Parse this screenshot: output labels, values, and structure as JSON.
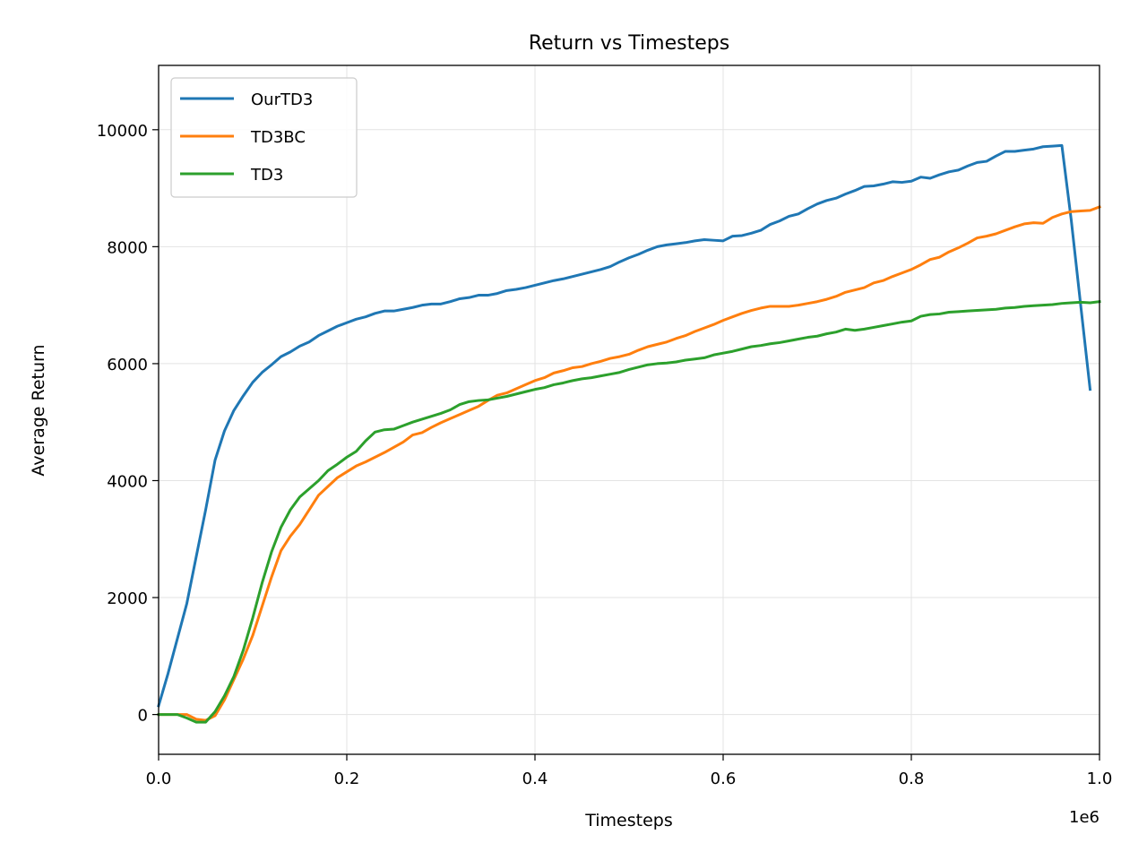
{
  "chart_data": {
    "type": "line",
    "title": "Return vs Timesteps",
    "xlabel": "Timesteps",
    "ylabel": "Average Return",
    "x_offset_label": "1e6",
    "xlim": [
      0.0,
      1.0
    ],
    "ylim": [
      -680,
      11100
    ],
    "xticks": [
      0.0,
      0.2,
      0.4,
      0.6,
      0.8,
      1.0
    ],
    "xtick_labels": [
      "0.0",
      "0.2",
      "0.4",
      "0.6",
      "0.8",
      "1.0"
    ],
    "yticks": [
      0,
      2000,
      4000,
      6000,
      8000,
      10000
    ],
    "ytick_labels": [
      "0",
      "2000",
      "4000",
      "6000",
      "8000",
      "10000"
    ],
    "grid": true,
    "legend_position": "top-left",
    "series": [
      {
        "name": "OurTD3",
        "color": "#1f77b4",
        "x": [
          0.0,
          0.01,
          0.02,
          0.03,
          0.04,
          0.05,
          0.06,
          0.07,
          0.08,
          0.09,
          0.1,
          0.11,
          0.12,
          0.13,
          0.14,
          0.15,
          0.16,
          0.17,
          0.18,
          0.19,
          0.2,
          0.21,
          0.22,
          0.23,
          0.24,
          0.25,
          0.26,
          0.27,
          0.28,
          0.29,
          0.3,
          0.31,
          0.32,
          0.33,
          0.34,
          0.35,
          0.36,
          0.37,
          0.38,
          0.39,
          0.4,
          0.41,
          0.42,
          0.43,
          0.44,
          0.45,
          0.46,
          0.47,
          0.48,
          0.49,
          0.5,
          0.51,
          0.52,
          0.53,
          0.54,
          0.55,
          0.56,
          0.57,
          0.58,
          0.59,
          0.6,
          0.61,
          0.62,
          0.63,
          0.64,
          0.65,
          0.66,
          0.67,
          0.68,
          0.69,
          0.7,
          0.71,
          0.72,
          0.73,
          0.74,
          0.75,
          0.76,
          0.77,
          0.78,
          0.79,
          0.8,
          0.81,
          0.82,
          0.83,
          0.84,
          0.85,
          0.86,
          0.87,
          0.88,
          0.89,
          0.9,
          0.91,
          0.92,
          0.93,
          0.94,
          0.95,
          0.96,
          0.97,
          0.98,
          0.99
        ],
        "values": [
          150,
          700,
          1300,
          1900,
          2700,
          3500,
          4350,
          4850,
          5200,
          5450,
          5680,
          5850,
          5980,
          6120,
          6200,
          6300,
          6370,
          6480,
          6560,
          6640,
          6700,
          6760,
          6800,
          6860,
          6900,
          6900,
          6930,
          6960,
          7000,
          7020,
          7020,
          7060,
          7110,
          7130,
          7170,
          7170,
          7200,
          7250,
          7270,
          7300,
          7340,
          7380,
          7420,
          7450,
          7490,
          7530,
          7570,
          7610,
          7660,
          7740,
          7810,
          7870,
          7940,
          8000,
          8030,
          8050,
          8070,
          8100,
          8120,
          8110,
          8100,
          8180,
          8190,
          8230,
          8280,
          8380,
          8440,
          8520,
          8560,
          8650,
          8730,
          8790,
          8830,
          8900,
          8960,
          9030,
          9040,
          9070,
          9110,
          9100,
          9120,
          9190,
          9170,
          9230,
          9280,
          9310,
          9380,
          9440,
          9460,
          9550,
          9630,
          9630,
          9650,
          9670,
          9710,
          9720,
          9730,
          8450,
          7000,
          5560
        ]
      },
      {
        "name": "TD3BC",
        "color": "#ff7f0e",
        "x": [
          0.0,
          0.01,
          0.02,
          0.03,
          0.04,
          0.05,
          0.06,
          0.07,
          0.08,
          0.09,
          0.1,
          0.11,
          0.12,
          0.13,
          0.14,
          0.15,
          0.16,
          0.17,
          0.18,
          0.19,
          0.2,
          0.21,
          0.22,
          0.23,
          0.24,
          0.25,
          0.26,
          0.27,
          0.28,
          0.29,
          0.3,
          0.31,
          0.32,
          0.33,
          0.34,
          0.35,
          0.36,
          0.37,
          0.38,
          0.39,
          0.4,
          0.41,
          0.42,
          0.43,
          0.44,
          0.45,
          0.46,
          0.47,
          0.48,
          0.49,
          0.5,
          0.51,
          0.52,
          0.53,
          0.54,
          0.55,
          0.56,
          0.57,
          0.58,
          0.59,
          0.6,
          0.61,
          0.62,
          0.63,
          0.64,
          0.65,
          0.66,
          0.67,
          0.68,
          0.69,
          0.7,
          0.71,
          0.72,
          0.73,
          0.74,
          0.75,
          0.76,
          0.77,
          0.78,
          0.79,
          0.8,
          0.81,
          0.82,
          0.83,
          0.84,
          0.85,
          0.86,
          0.87,
          0.88,
          0.89,
          0.9,
          0.91,
          0.92,
          0.93,
          0.94,
          0.95,
          0.96,
          0.97,
          0.98,
          0.99,
          1.0
        ],
        "values": [
          0,
          0,
          0,
          0,
          -80,
          -100,
          -20,
          250,
          600,
          950,
          1350,
          1850,
          2350,
          2800,
          3050,
          3250,
          3500,
          3750,
          3900,
          4050,
          4150,
          4250,
          4320,
          4400,
          4480,
          4570,
          4660,
          4780,
          4820,
          4910,
          4990,
          5060,
          5130,
          5200,
          5270,
          5370,
          5460,
          5500,
          5570,
          5640,
          5710,
          5760,
          5840,
          5880,
          5930,
          5950,
          6000,
          6040,
          6090,
          6120,
          6160,
          6230,
          6290,
          6330,
          6370,
          6430,
          6480,
          6550,
          6610,
          6670,
          6740,
          6800,
          6860,
          6910,
          6950,
          6980,
          6980,
          6980,
          7000,
          7030,
          7060,
          7100,
          7150,
          7220,
          7260,
          7300,
          7380,
          7420,
          7490,
          7550,
          7610,
          7690,
          7780,
          7820,
          7910,
          7980,
          8060,
          8150,
          8180,
          8220,
          8280,
          8340,
          8390,
          8410,
          8400,
          8500,
          8560,
          8600,
          8610,
          8620,
          8680
        ]
      },
      {
        "name": "TD3",
        "color": "#2ca02c",
        "x": [
          0.0,
          0.01,
          0.02,
          0.03,
          0.04,
          0.05,
          0.06,
          0.07,
          0.08,
          0.09,
          0.1,
          0.11,
          0.12,
          0.13,
          0.14,
          0.15,
          0.16,
          0.17,
          0.18,
          0.19,
          0.2,
          0.21,
          0.22,
          0.23,
          0.24,
          0.25,
          0.26,
          0.27,
          0.28,
          0.29,
          0.3,
          0.31,
          0.32,
          0.33,
          0.34,
          0.35,
          0.36,
          0.37,
          0.38,
          0.39,
          0.4,
          0.41,
          0.42,
          0.43,
          0.44,
          0.45,
          0.46,
          0.47,
          0.48,
          0.49,
          0.5,
          0.51,
          0.52,
          0.53,
          0.54,
          0.55,
          0.56,
          0.57,
          0.58,
          0.59,
          0.6,
          0.61,
          0.62,
          0.63,
          0.64,
          0.65,
          0.66,
          0.67,
          0.68,
          0.69,
          0.7,
          0.71,
          0.72,
          0.73,
          0.74,
          0.75,
          0.76,
          0.77,
          0.78,
          0.79,
          0.8,
          0.81,
          0.82,
          0.83,
          0.84,
          0.85,
          0.86,
          0.87,
          0.88,
          0.89,
          0.9,
          0.91,
          0.92,
          0.93,
          0.94,
          0.95,
          0.96,
          0.97,
          0.98,
          0.99,
          1.0
        ],
        "values": [
          0,
          0,
          0,
          -60,
          -130,
          -130,
          50,
          320,
          650,
          1100,
          1650,
          2250,
          2780,
          3200,
          3500,
          3720,
          3860,
          4000,
          4170,
          4280,
          4400,
          4500,
          4680,
          4830,
          4870,
          4880,
          4940,
          5000,
          5050,
          5100,
          5150,
          5210,
          5300,
          5350,
          5370,
          5380,
          5410,
          5440,
          5480,
          5520,
          5560,
          5590,
          5640,
          5670,
          5710,
          5740,
          5760,
          5790,
          5820,
          5850,
          5900,
          5940,
          5980,
          6000,
          6010,
          6030,
          6060,
          6080,
          6100,
          6150,
          6180,
          6210,
          6250,
          6290,
          6310,
          6340,
          6360,
          6390,
          6420,
          6450,
          6470,
          6510,
          6540,
          6590,
          6570,
          6590,
          6620,
          6650,
          6680,
          6710,
          6730,
          6810,
          6840,
          6850,
          6880,
          6890,
          6900,
          6910,
          6920,
          6930,
          6950,
          6960,
          6980,
          6990,
          7000,
          7010,
          7030,
          7040,
          7050,
          7040,
          7060
        ]
      }
    ]
  }
}
